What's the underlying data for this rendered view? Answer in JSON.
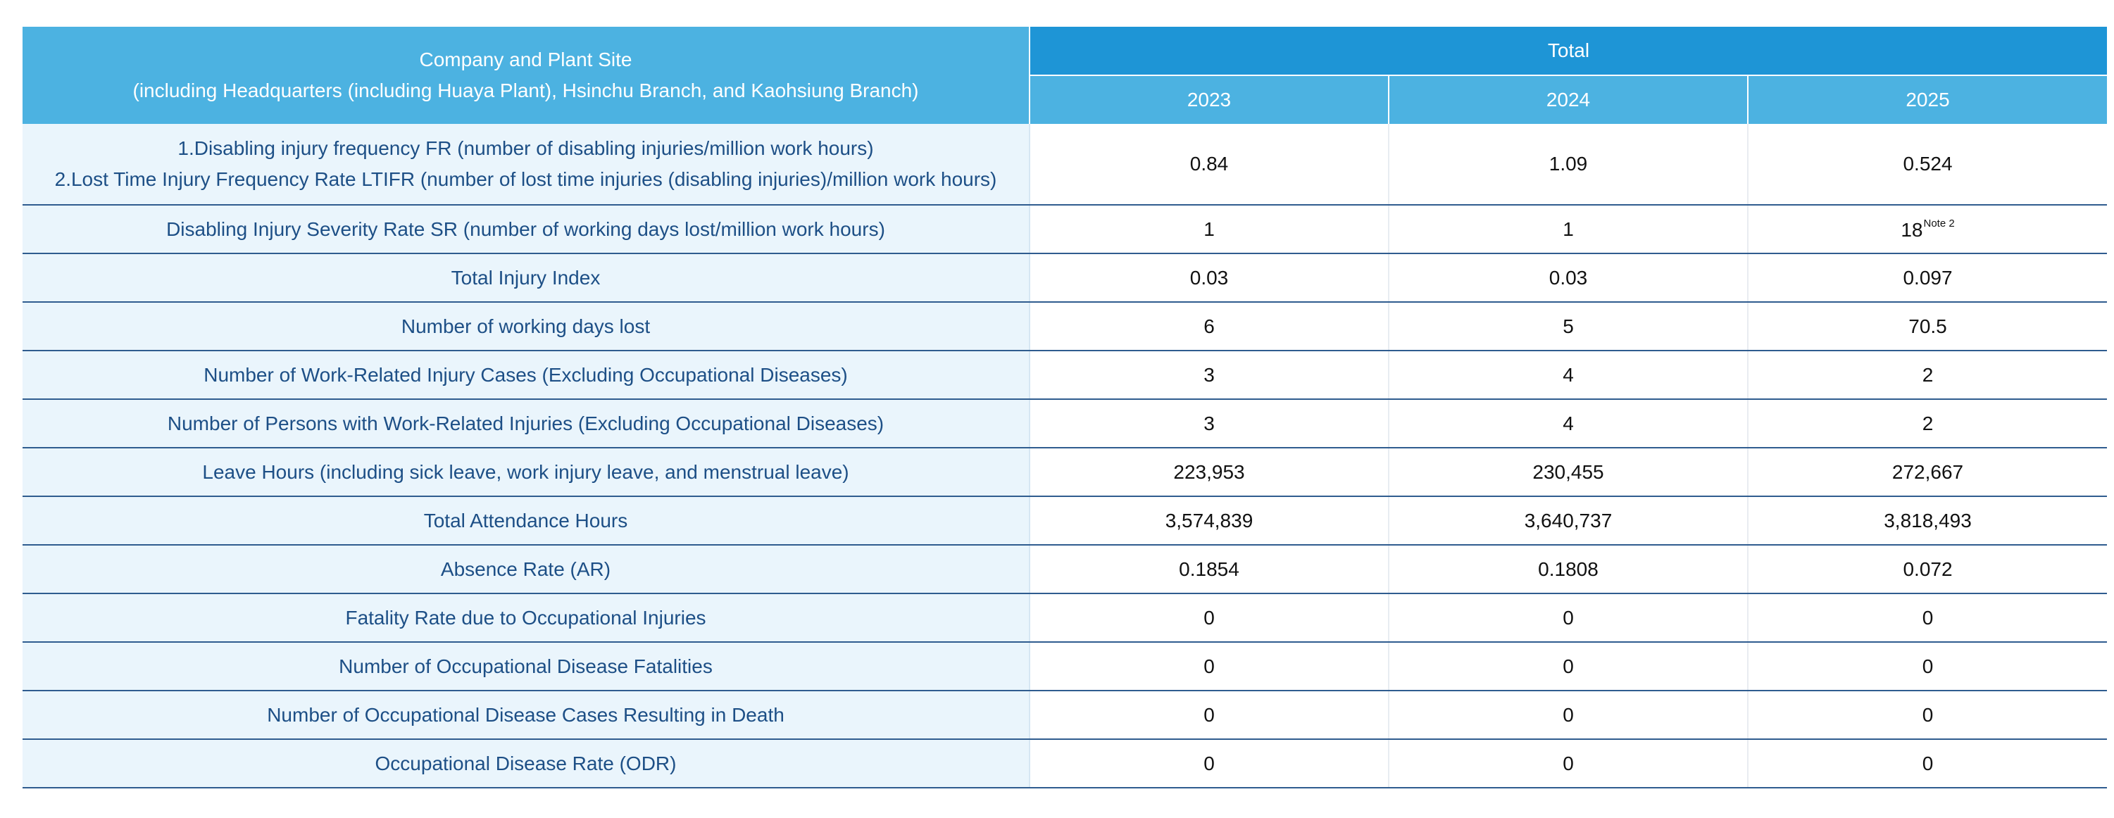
{
  "header": {
    "corner_line1": "Company and Plant Site",
    "corner_line2": "(including Headquarters (including Huaya Plant), Hsinchu Branch, and Kaohsiung Branch)",
    "group_label": "Total",
    "years": [
      "2023",
      "2024",
      "2025"
    ]
  },
  "rows": [
    {
      "label_line1": "1.Disabling injury frequency FR (number of disabling injuries/million work hours)",
      "label_line2": "2.Lost Time Injury Frequency Rate LTIFR (number of lost time injuries (disabling injuries)/million work hours)",
      "values": [
        "0.84",
        "1.09",
        "0.524"
      ]
    },
    {
      "label": "Disabling Injury Severity Rate SR (number of working days lost/million work hours)",
      "values": [
        "1",
        "1",
        "18"
      ],
      "note": "Note 2"
    },
    {
      "label": "Total Injury Index",
      "values": [
        "0.03",
        "0.03",
        "0.097"
      ]
    },
    {
      "label": "Number of working days lost",
      "values": [
        "6",
        "5",
        "70.5"
      ]
    },
    {
      "label": "Number of Work-Related Injury Cases (Excluding Occupational Diseases)",
      "values": [
        "3",
        "4",
        "2"
      ]
    },
    {
      "label": "Number of Persons with Work-Related Injuries (Excluding Occupational Diseases)",
      "values": [
        "3",
        "4",
        "2"
      ]
    },
    {
      "label": "Leave Hours (including sick leave, work injury leave, and menstrual leave)",
      "values": [
        "223,953",
        "230,455",
        "272,667"
      ]
    },
    {
      "label": "Total Attendance Hours",
      "values": [
        "3,574,839",
        "3,640,737",
        "3,818,493"
      ]
    },
    {
      "label": "Absence Rate (AR)",
      "values": [
        "0.1854",
        "0.1808",
        "0.072"
      ]
    },
    {
      "label": "Fatality Rate due to Occupational Injuries",
      "values": [
        "0",
        "0",
        "0"
      ]
    },
    {
      "label": "Number of Occupational Disease Fatalities",
      "values": [
        "0",
        "0",
        "0"
      ]
    },
    {
      "label": "Number of Occupational Disease Cases Resulting in Death",
      "values": [
        "0",
        "0",
        "0"
      ]
    },
    {
      "label": "Occupational Disease Rate (ODR)",
      "values": [
        "0",
        "0",
        "0"
      ]
    }
  ],
  "colors": {
    "header_light": "#4cb2e1",
    "header_dark": "#1e95d6",
    "label_bg": "#eaf5fc",
    "label_text": "#1d4f86",
    "row_rule": "#2f5c8f"
  }
}
